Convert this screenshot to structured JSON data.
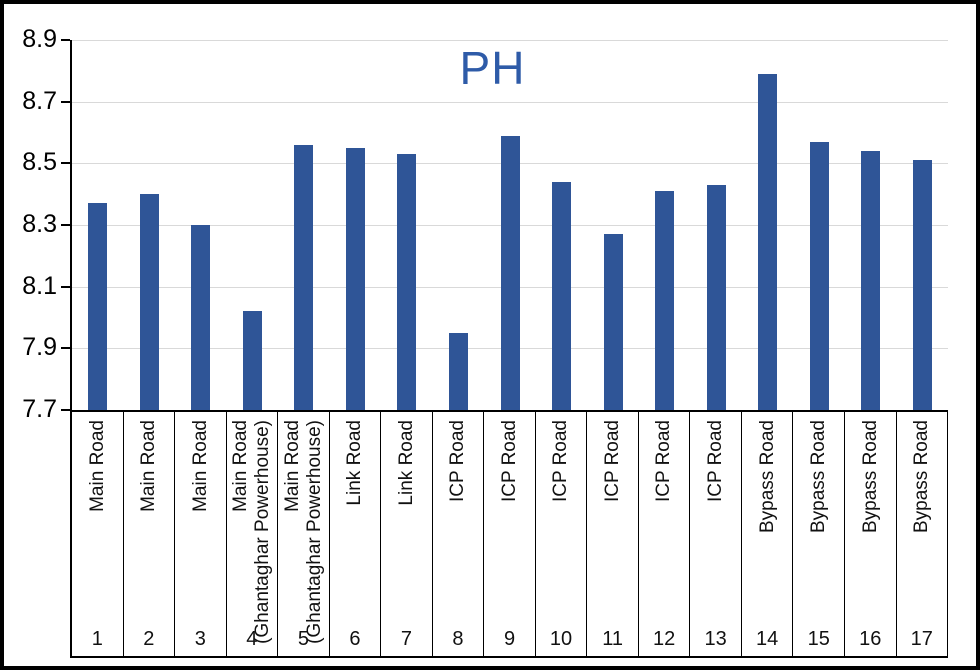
{
  "chart_data": {
    "type": "bar",
    "title": "PH",
    "title_color": "#2E5BA8",
    "bar_color": "#2F5597",
    "gridline_color": "#D9D9D9",
    "axis_color": "#000000",
    "grid": true,
    "legend": false,
    "ylim": [
      7.7,
      8.9
    ],
    "ytick_step": 0.2,
    "yticks": [
      "8.9",
      "8.7",
      "8.5",
      "8.3",
      "8.1",
      "7.9",
      "7.7"
    ],
    "categories": [
      {
        "num": "1",
        "label": "Main Road",
        "sublabel": ""
      },
      {
        "num": "2",
        "label": "Main Road",
        "sublabel": ""
      },
      {
        "num": "3",
        "label": "Main Road",
        "sublabel": ""
      },
      {
        "num": "4",
        "label": "Main Road",
        "sublabel": "(Ghantaghar Powerhouse)"
      },
      {
        "num": "5",
        "label": "Main Road",
        "sublabel": "(Ghantaghar Powerhouse)"
      },
      {
        "num": "6",
        "label": "Link Road",
        "sublabel": ""
      },
      {
        "num": "7",
        "label": "Link Road",
        "sublabel": ""
      },
      {
        "num": "8",
        "label": "ICP Road",
        "sublabel": ""
      },
      {
        "num": "9",
        "label": "ICP Road",
        "sublabel": ""
      },
      {
        "num": "10",
        "label": "ICP Road",
        "sublabel": ""
      },
      {
        "num": "11",
        "label": "ICP Road",
        "sublabel": ""
      },
      {
        "num": "12",
        "label": "ICP Road",
        "sublabel": ""
      },
      {
        "num": "13",
        "label": "ICP Road",
        "sublabel": ""
      },
      {
        "num": "14",
        "label": "Bypass Road",
        "sublabel": ""
      },
      {
        "num": "15",
        "label": "Bypass Road",
        "sublabel": ""
      },
      {
        "num": "16",
        "label": "Bypass Road",
        "sublabel": ""
      },
      {
        "num": "17",
        "label": "Bypass Road",
        "sublabel": ""
      }
    ],
    "values": [
      8.37,
      8.4,
      8.3,
      8.02,
      8.56,
      8.55,
      8.53,
      7.95,
      8.59,
      8.44,
      8.27,
      8.41,
      8.43,
      8.79,
      8.57,
      8.54,
      8.51
    ]
  }
}
